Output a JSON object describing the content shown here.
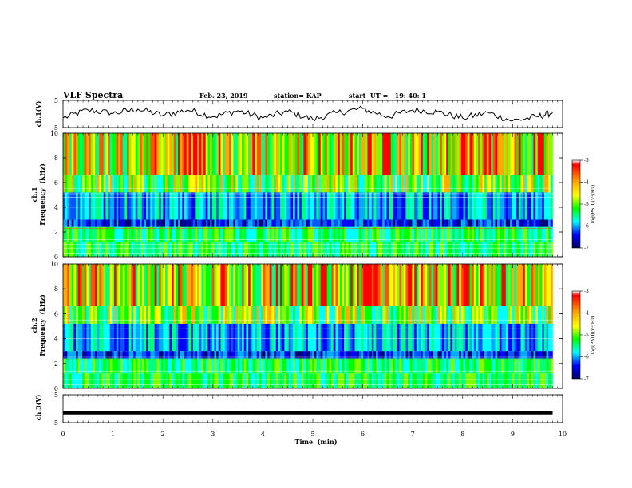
{
  "header": {
    "title": "VLF Spectra",
    "date": "Feb. 23, 2019",
    "station": "station= KAP",
    "start": "start  UT =   19: 40: 1"
  },
  "chart_data": [
    {
      "type": "line",
      "panel": "ch1-waveform",
      "ylabel": "ch.1(V)",
      "ylim": [
        -5,
        5
      ],
      "yticks": [
        "5",
        "-5"
      ],
      "xlim": [
        0,
        10
      ],
      "series": [
        {
          "x": [
            0,
            0.5,
            1,
            1.5,
            2,
            2.5,
            3,
            3.5,
            4,
            4.5,
            5,
            5.5,
            6,
            6.5,
            7,
            7.5,
            8,
            8.5,
            9,
            9.5,
            9.8
          ],
          "values": [
            -1.5,
            1.5,
            0.2,
            1.8,
            -0.5,
            1.5,
            -1.0,
            1.2,
            -1.5,
            1.0,
            -2.0,
            0.5,
            2.0,
            -1.0,
            1.5,
            0.8,
            -1.5,
            0.5,
            -2.5,
            -1.0,
            0.5
          ]
        }
      ]
    },
    {
      "type": "heatmap",
      "panel": "ch1-spectrogram",
      "ylabel": "ch.1\nFrequency (kHz)",
      "ylim": [
        0,
        10
      ],
      "yticks": [
        "0",
        "2",
        "4",
        "6",
        "8",
        "10"
      ],
      "xlim": [
        0,
        9.8
      ],
      "colorbar": {
        "label": "log(PSD)(V²/Hz)",
        "range": [
          -7,
          -3
        ],
        "ticks": [
          "-3",
          "-4",
          "-5",
          "-6",
          "-7"
        ]
      }
    },
    {
      "type": "heatmap",
      "panel": "ch2-spectrogram",
      "ylabel": "ch.2\nFrequency (kHz)",
      "ylim": [
        0,
        10
      ],
      "yticks": [
        "0",
        "2",
        "4",
        "6",
        "8",
        "10"
      ],
      "xlim": [
        0,
        9.8
      ],
      "colorbar": {
        "label": "log(PSD)(V²/Hz)",
        "range": [
          -7,
          -3
        ],
        "ticks": [
          "-3",
          "-4",
          "-5",
          "-6",
          "-7"
        ]
      }
    },
    {
      "type": "line",
      "panel": "ch3-waveform",
      "ylabel": "ch.3(V)",
      "ylim": [
        -5,
        5
      ],
      "yticks": [
        "5",
        "-5"
      ],
      "xlim": [
        0,
        10
      ],
      "series": [
        {
          "x": [
            0,
            9.8
          ],
          "values": [
            -1.5,
            -1.5
          ]
        }
      ]
    }
  ],
  "xaxis": {
    "label": "Time  (min)",
    "range": [
      0,
      10
    ],
    "ticks": [
      "0",
      "1",
      "2",
      "3",
      "4",
      "5",
      "6",
      "7",
      "8",
      "9",
      "10"
    ]
  },
  "ylabels": {
    "ch1": "ch.1(V)",
    "ch2_line1": "ch.1",
    "ch2_line2": "Frequency  (kHz)",
    "ch3_line1": "ch.2",
    "ch3_line2": "Frequency  (kHz)",
    "ch4": "ch.3(V)"
  },
  "colorbar": {
    "label": "log(PSD)(V²/Hz)",
    "ticks": [
      "-3",
      "-4",
      "-5",
      "-6",
      "-7"
    ],
    "colors": [
      "#ff0000",
      "#ffff00",
      "#00ff00",
      "#00ffff",
      "#0000ff",
      "#000080"
    ]
  }
}
